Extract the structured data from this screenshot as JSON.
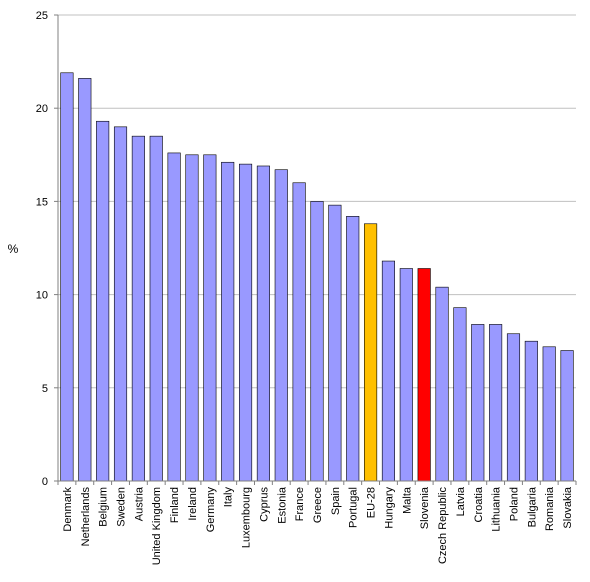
{
  "chart_data": {
    "type": "bar",
    "title": "",
    "xlabel": "",
    "ylabel": "%",
    "ylim": [
      0,
      25
    ],
    "yticks": [
      0,
      5,
      10,
      15,
      20,
      25
    ],
    "grid": true,
    "categories": [
      "Denmark",
      "Netherlands",
      "Belgium",
      "Sweden",
      "Austria",
      "United Kingdom",
      "Finland",
      "Ireland",
      "Germany",
      "Italy",
      "Luxembourg",
      "Cyprus",
      "Estonia",
      "France",
      "Greece",
      "Spain",
      "Portugal",
      "EU-28",
      "Hungary",
      "Malta",
      "Slovenia",
      "Czech Republic",
      "Latvia",
      "Croatia",
      "Lithuania",
      "Poland",
      "Bulgaria",
      "Romania",
      "Slovakia"
    ],
    "values": [
      21.9,
      21.6,
      19.3,
      19.0,
      18.5,
      18.5,
      17.6,
      17.5,
      17.5,
      17.1,
      17.0,
      16.9,
      16.7,
      16.0,
      15.0,
      14.8,
      14.2,
      13.8,
      11.8,
      11.4,
      11.4,
      10.4,
      9.3,
      8.4,
      8.4,
      7.9,
      7.5,
      7.2,
      7.0
    ],
    "colors": {
      "default": "#9999ff",
      "EU-28": "#ffc000",
      "Slovenia": "#ff0000",
      "grid": "#c0c0c0",
      "axis": "#808080",
      "bar_border": "#000000"
    }
  }
}
